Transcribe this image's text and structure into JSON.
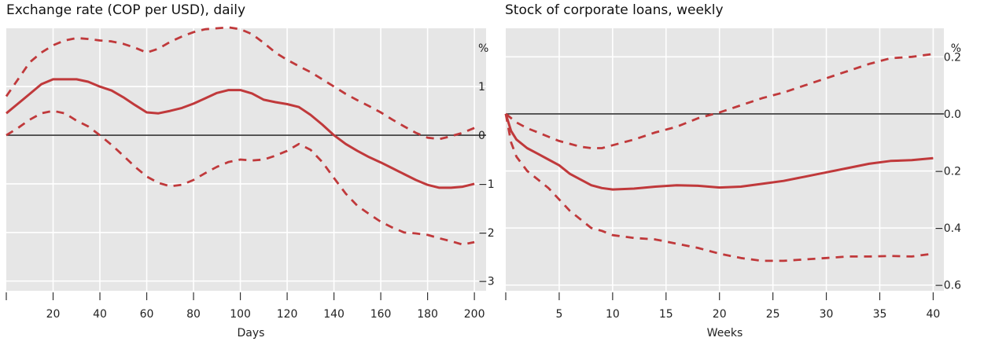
{
  "chart_data": [
    {
      "type": "line",
      "title": "Exchange rate (COP per USD), daily",
      "xlabel": "Days",
      "ylabel": "%",
      "xlim": [
        0,
        205
      ],
      "ylim": [
        -3.2,
        2.2
      ],
      "x_ticks": [
        20,
        40,
        60,
        80,
        100,
        120,
        140,
        160,
        180,
        200
      ],
      "y_ticks": [
        1,
        0,
        -1,
        -2,
        -3
      ],
      "grid": true,
      "zero_line": true,
      "color": "#c0393b",
      "series": [
        {
          "style": "solid",
          "x": [
            0,
            5,
            10,
            15,
            20,
            25,
            30,
            35,
            40,
            45,
            50,
            55,
            60,
            65,
            70,
            75,
            80,
            85,
            90,
            95,
            100,
            105,
            110,
            115,
            120,
            125,
            130,
            135,
            140,
            145,
            150,
            155,
            160,
            165,
            170,
            175,
            180,
            185,
            190,
            195,
            200
          ],
          "values": [
            0.45,
            0.65,
            0.85,
            1.05,
            1.15,
            1.15,
            1.15,
            1.1,
            1.0,
            0.92,
            0.78,
            0.62,
            0.47,
            0.45,
            0.5,
            0.56,
            0.65,
            0.76,
            0.87,
            0.93,
            0.93,
            0.86,
            0.73,
            0.68,
            0.64,
            0.58,
            0.42,
            0.22,
            0.0,
            -0.18,
            -0.32,
            -0.45,
            -0.56,
            -0.68,
            -0.8,
            -0.92,
            -1.02,
            -1.08,
            -1.08,
            -1.06,
            -1.0
          ]
        },
        {
          "style": "dashed",
          "x": [
            0,
            5,
            10,
            15,
            20,
            25,
            30,
            35,
            40,
            45,
            50,
            55,
            60,
            65,
            70,
            75,
            80,
            85,
            90,
            95,
            100,
            105,
            110,
            115,
            120,
            125,
            130,
            135,
            140,
            145,
            150,
            155,
            160,
            165,
            170,
            175,
            180,
            185,
            190,
            195,
            200
          ],
          "values": [
            0.8,
            1.15,
            1.5,
            1.7,
            1.85,
            1.95,
            2.0,
            1.98,
            1.95,
            1.93,
            1.88,
            1.8,
            1.7,
            1.78,
            1.92,
            2.03,
            2.12,
            2.18,
            2.2,
            2.22,
            2.18,
            2.08,
            1.9,
            1.7,
            1.55,
            1.42,
            1.3,
            1.15,
            1.0,
            0.85,
            0.72,
            0.6,
            0.47,
            0.32,
            0.18,
            0.05,
            -0.05,
            -0.08,
            -0.02,
            0.05,
            0.15
          ]
        },
        {
          "style": "dashed",
          "x": [
            0,
            5,
            10,
            15,
            20,
            25,
            30,
            35,
            40,
            45,
            50,
            55,
            60,
            65,
            70,
            75,
            80,
            85,
            90,
            95,
            100,
            105,
            110,
            115,
            120,
            125,
            130,
            135,
            140,
            145,
            150,
            155,
            160,
            165,
            170,
            175,
            180,
            185,
            190,
            195,
            200
          ],
          "values": [
            0.0,
            0.15,
            0.32,
            0.45,
            0.5,
            0.45,
            0.3,
            0.18,
            0.0,
            -0.2,
            -0.42,
            -0.65,
            -0.85,
            -0.98,
            -1.05,
            -1.02,
            -0.92,
            -0.78,
            -0.65,
            -0.55,
            -0.5,
            -0.52,
            -0.5,
            -0.42,
            -0.32,
            -0.18,
            -0.3,
            -0.55,
            -0.88,
            -1.2,
            -1.45,
            -1.62,
            -1.78,
            -1.9,
            -2.0,
            -2.02,
            -2.05,
            -2.12,
            -2.18,
            -2.25,
            -2.2
          ]
        }
      ]
    },
    {
      "type": "line",
      "title": "Stock of corporate loans, weekly",
      "xlabel": "Weeks",
      "ylabel": "%",
      "xlim": [
        0,
        41
      ],
      "ylim": [
        -0.62,
        0.3
      ],
      "x_ticks": [
        5,
        10,
        15,
        20,
        25,
        30,
        35,
        40
      ],
      "y_ticks": [
        0.2,
        0.0,
        -0.2,
        -0.4,
        -0.6
      ],
      "y_tick_labels": [
        "0.2",
        "0.0",
        "−0.2",
        "−0.4",
        "−0.6"
      ],
      "grid": true,
      "zero_line": true,
      "color": "#c0393b",
      "series": [
        {
          "style": "solid",
          "x": [
            0,
            0.5,
            1,
            2,
            3,
            4,
            5,
            6,
            7,
            8,
            9,
            10,
            12,
            14,
            16,
            18,
            20,
            22,
            24,
            26,
            28,
            30,
            32,
            34,
            36,
            38,
            40
          ],
          "values": [
            0.0,
            -0.06,
            -0.09,
            -0.12,
            -0.14,
            -0.16,
            -0.18,
            -0.21,
            -0.23,
            -0.25,
            -0.26,
            -0.265,
            -0.262,
            -0.255,
            -0.25,
            -0.252,
            -0.258,
            -0.255,
            -0.245,
            -0.235,
            -0.22,
            -0.205,
            -0.19,
            -0.175,
            -0.165,
            -0.162,
            -0.155
          ]
        },
        {
          "style": "dashed",
          "x": [
            0,
            1,
            2,
            3,
            4,
            5,
            6,
            7,
            8,
            9,
            10,
            12,
            14,
            16,
            18,
            20,
            22,
            24,
            26,
            28,
            30,
            32,
            34,
            36,
            38,
            40
          ],
          "values": [
            0.0,
            -0.03,
            -0.05,
            -0.065,
            -0.08,
            -0.095,
            -0.105,
            -0.115,
            -0.12,
            -0.12,
            -0.11,
            -0.09,
            -0.065,
            -0.045,
            -0.015,
            0.005,
            0.03,
            0.055,
            0.075,
            0.1,
            0.125,
            0.15,
            0.175,
            0.195,
            0.2,
            0.21
          ]
        },
        {
          "style": "dashed",
          "x": [
            0,
            0.5,
            1,
            2,
            3,
            4,
            5,
            6,
            7,
            8,
            9,
            10,
            12,
            14,
            16,
            18,
            20,
            22,
            24,
            26,
            28,
            30,
            32,
            34,
            36,
            38,
            40
          ],
          "values": [
            0.0,
            -0.1,
            -0.15,
            -0.2,
            -0.23,
            -0.26,
            -0.3,
            -0.34,
            -0.37,
            -0.4,
            -0.41,
            -0.425,
            -0.435,
            -0.44,
            -0.455,
            -0.47,
            -0.49,
            -0.505,
            -0.515,
            -0.515,
            -0.51,
            -0.505,
            -0.5,
            -0.5,
            -0.498,
            -0.5,
            -0.49
          ]
        }
      ]
    }
  ]
}
